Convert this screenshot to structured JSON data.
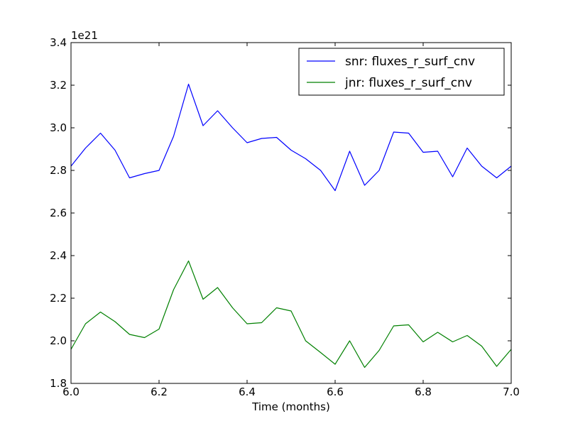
{
  "chart_data": {
    "type": "line",
    "title": "",
    "xlabel": "Time (months)",
    "ylabel": "",
    "offset_label": "1e21",
    "xlim": [
      6.0,
      7.0
    ],
    "ylim": [
      1.8,
      3.4
    ],
    "xticks": [
      6.0,
      6.2,
      6.4,
      6.6,
      6.8,
      7.0
    ],
    "xtick_labels": [
      "6.0",
      "6.2",
      "6.4",
      "6.6",
      "6.8",
      "7.0"
    ],
    "yticks": [
      1.8,
      2.0,
      2.2,
      2.4,
      2.6,
      2.8,
      3.0,
      3.2,
      3.4
    ],
    "ytick_labels": [
      "1.8",
      "2.0",
      "2.2",
      "2.4",
      "2.6",
      "2.8",
      "3.0",
      "3.2",
      "3.4"
    ],
    "grid": false,
    "legend_position": "top-right",
    "x": [
      6.0,
      6.033,
      6.067,
      6.1,
      6.133,
      6.167,
      6.2,
      6.233,
      6.267,
      6.3,
      6.333,
      6.367,
      6.4,
      6.433,
      6.467,
      6.5,
      6.533,
      6.567,
      6.6,
      6.633,
      6.667,
      6.7,
      6.733,
      6.767,
      6.8,
      6.833,
      6.867,
      6.9,
      6.933,
      6.967,
      7.0
    ],
    "series": [
      {
        "name": "snr: fluxes_r_surf_cnv",
        "color": "#0000ff",
        "values": [
          2.82,
          2.905,
          2.975,
          2.895,
          2.765,
          2.785,
          2.8,
          2.96,
          3.205,
          3.01,
          3.08,
          3.0,
          2.93,
          2.95,
          2.955,
          2.895,
          2.855,
          2.8,
          2.705,
          2.89,
          2.73,
          2.8,
          2.98,
          2.975,
          2.885,
          2.89,
          2.77,
          2.905,
          2.82,
          2.765,
          2.82
        ]
      },
      {
        "name": "jnr: fluxes_r_surf_cnv",
        "color": "#008000",
        "values": [
          1.96,
          2.08,
          2.135,
          2.09,
          2.03,
          2.015,
          2.055,
          2.24,
          2.375,
          2.195,
          2.25,
          2.155,
          2.08,
          2.085,
          2.155,
          2.14,
          2.0,
          1.945,
          1.89,
          2.0,
          1.875,
          1.955,
          2.07,
          2.075,
          1.995,
          2.04,
          1.995,
          2.025,
          1.975,
          1.88,
          1.96
        ]
      }
    ]
  }
}
